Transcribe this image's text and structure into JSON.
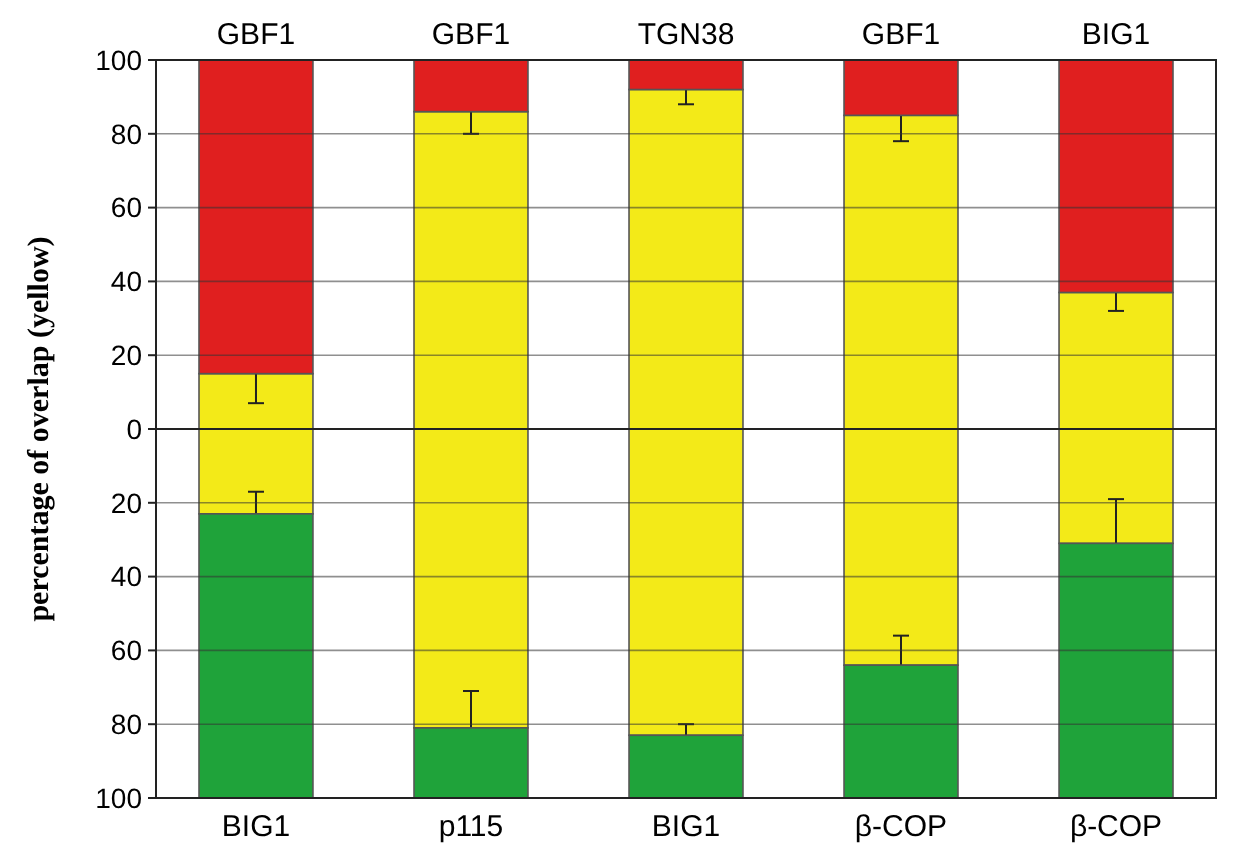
{
  "chart_data": [
    {
      "type": "bar",
      "stacked": true,
      "ylabel": "percentage of overlap (yellow)",
      "categories": [
        "GBF1",
        "GBF1",
        "TGN38",
        "GBF1",
        "BIG1"
      ],
      "series": [
        {
          "color": "#f3ea18",
          "values": [
            15,
            86,
            92,
            85,
            37
          ],
          "errors": [
            8,
            6,
            4,
            7,
            5
          ]
        },
        {
          "color": "#e01f1f",
          "values": [
            85,
            14,
            8,
            15,
            63
          ]
        }
      ],
      "ylim": [
        0,
        100
      ],
      "yticks": [
        0,
        20,
        40,
        60,
        80,
        100
      ],
      "grid": "y"
    },
    {
      "type": "bar",
      "stacked": true,
      "categories": [
        "BIG1",
        "p115",
        "BIG1",
        "β-COP",
        "β-COP"
      ],
      "series": [
        {
          "color": "#f3ea18",
          "values": [
            23,
            81,
            83,
            64,
            31
          ],
          "errors": [
            6,
            10,
            3,
            8,
            12
          ]
        },
        {
          "color": "#1fa33a",
          "values": [
            77,
            19,
            17,
            36,
            69
          ]
        }
      ],
      "ylim": [
        100,
        0
      ],
      "yticks": [
        {
          "value": 0,
          "label": null
        },
        20,
        40,
        60,
        80,
        100
      ],
      "grid": "y"
    }
  ]
}
